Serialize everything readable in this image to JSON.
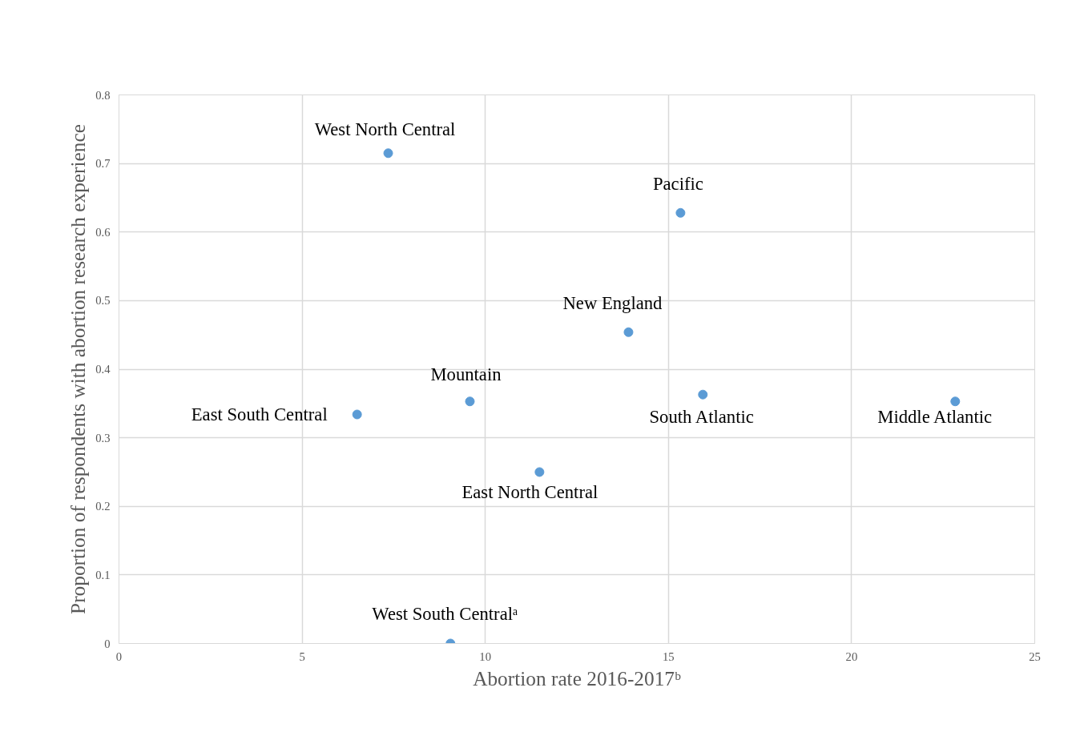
{
  "chart_data": {
    "type": "scatter",
    "xlabel": "Abortion rate 2016-2017ᵇ",
    "ylabel": "Proportion of respondents with abortion research experience",
    "x": [
      7.35,
      15.33,
      13.91,
      9.58,
      6.5,
      15.94,
      22.83,
      11.48,
      9.05
    ],
    "values": [
      0.715,
      0.628,
      0.454,
      0.353,
      0.334,
      0.363,
      0.353,
      0.25,
      0
    ],
    "color": "#5b9bd5",
    "marker": "circle",
    "grid": true,
    "xlim": [
      0,
      25
    ],
    "xticks": [
      0,
      5,
      10,
      15,
      20,
      25
    ],
    "ylim": [
      0,
      0.8
    ],
    "yticks": [
      {
        "value": 0,
        "label": "0"
      },
      {
        "value": 0.1,
        "label": "0.1"
      },
      {
        "value": 0.2,
        "label": "0.2"
      },
      {
        "value": 0.3,
        "label": "0.3"
      },
      {
        "value": 0.4,
        "label": "0.4"
      },
      {
        "value": 0.5,
        "label": "0.5"
      },
      {
        "value": 0.6,
        "label": "0.6"
      },
      {
        "value": 0.7,
        "label": "0.7"
      },
      {
        "value": 0.8,
        "label": "0.8"
      }
    ],
    "annotations": [
      {
        "text": "West North Central",
        "x": 7.35,
        "y": 0.715
      },
      {
        "text": "Pacific",
        "x": 15.33,
        "y": 0.628
      },
      {
        "text": "New England",
        "x": 13.91,
        "y": 0.454
      },
      {
        "text": "Mountain",
        "x": 9.58,
        "y": 0.353
      },
      {
        "text": "East South Central",
        "x": 6.5,
        "y": 0.334
      },
      {
        "text": "South Atlantic",
        "x": 15.94,
        "y": 0.363
      },
      {
        "text": "Middle Atlantic",
        "x": 22.83,
        "y": 0.353
      },
      {
        "text": "East North Central",
        "x": 11.48,
        "y": 0.25
      },
      {
        "text": "West South Centralᵃ",
        "x": 9.05,
        "y": 0
      }
    ]
  }
}
